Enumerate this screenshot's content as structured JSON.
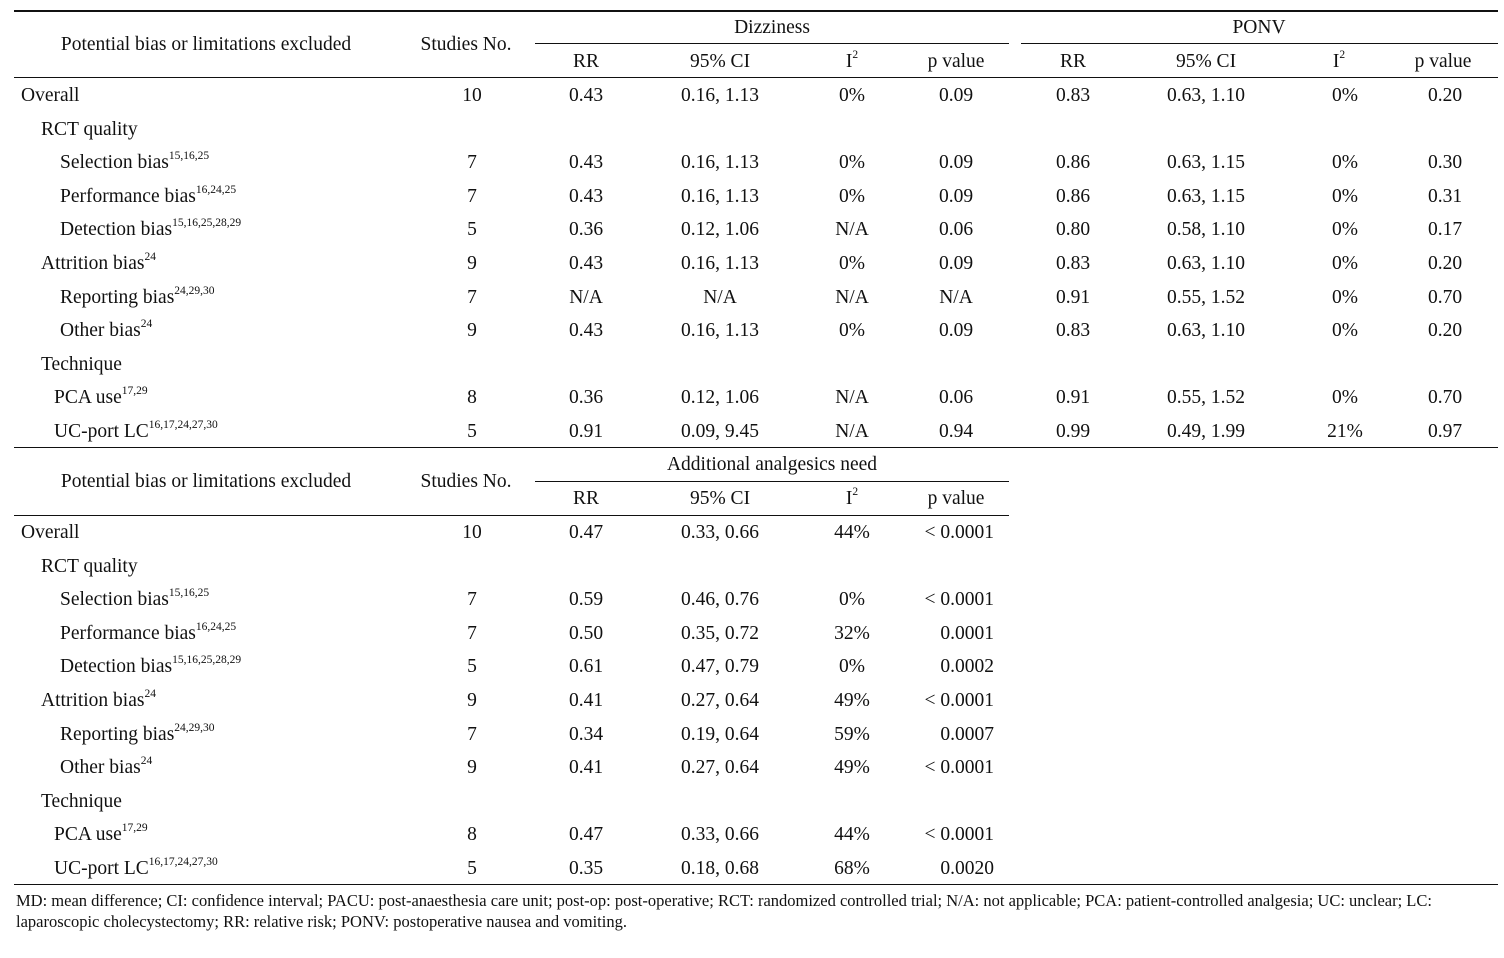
{
  "table1": {
    "header": {
      "potential_bias": "Potential bias or limitations excluded",
      "studies_no": "Studies No.",
      "group1": "Dizziness",
      "group2": "PONV",
      "sub_cols": [
        "RR",
        "95% CI",
        "I",
        "p value"
      ],
      "i_sup": "2"
    },
    "rows": [
      {
        "label": "Overall",
        "refs": "",
        "indent": 0,
        "n": "10",
        "d": [
          "0.43",
          "0.16, 1.13",
          "0%",
          "0.09"
        ],
        "p": [
          "0.83",
          "0.63, 1.10",
          "0%",
          "0.20"
        ]
      },
      {
        "label": "RCT quality",
        "refs": "",
        "indent": 1,
        "n": "",
        "d": [
          "",
          "",
          "",
          ""
        ],
        "p": [
          "",
          "",
          "",
          ""
        ]
      },
      {
        "label": "Selection bias",
        "refs": "15,16,25",
        "indent": 2,
        "n": "7",
        "d": [
          "0.43",
          "0.16, 1.13",
          "0%",
          "0.09"
        ],
        "p": [
          "0.86",
          "0.63, 1.15",
          "0%",
          "0.30"
        ]
      },
      {
        "label": "Performance bias",
        "refs": "16,24,25",
        "indent": 2,
        "n": "7",
        "d": [
          "0.43",
          "0.16, 1.13",
          "0%",
          "0.09"
        ],
        "p": [
          "0.86",
          "0.63, 1.15",
          "0%",
          "0.31"
        ]
      },
      {
        "label": "Detection bias",
        "refs": "15,16,25,28,29",
        "indent": 2,
        "n": "5",
        "d": [
          "0.36",
          "0.12, 1.06",
          "N/A",
          "0.06"
        ],
        "p": [
          "0.80",
          "0.58, 1.10",
          "0%",
          "0.17"
        ]
      },
      {
        "label": "Attrition bias",
        "refs": "24",
        "indent": 1,
        "n": "9",
        "d": [
          "0.43",
          "0.16, 1.13",
          "0%",
          "0.09"
        ],
        "p": [
          "0.83",
          "0.63, 1.10",
          "0%",
          "0.20"
        ]
      },
      {
        "label": "Reporting bias",
        "refs": "24,29,30",
        "indent": 2,
        "n": "7",
        "d": [
          "N/A",
          "N/A",
          "N/A",
          "N/A"
        ],
        "p": [
          "0.91",
          "0.55, 1.52",
          "0%",
          "0.70"
        ]
      },
      {
        "label": "Other bias",
        "refs": "24",
        "indent": 2,
        "n": "9",
        "d": [
          "0.43",
          "0.16, 1.13",
          "0%",
          "0.09"
        ],
        "p": [
          "0.83",
          "0.63, 1.10",
          "0%",
          "0.20"
        ]
      },
      {
        "label": "Technique",
        "refs": "",
        "indent": 1,
        "n": "",
        "d": [
          "",
          "",
          "",
          ""
        ],
        "p": [
          "",
          "",
          "",
          ""
        ]
      },
      {
        "label": "PCA use",
        "refs": "17,29",
        "indent": 3,
        "n": "8",
        "d": [
          "0.36",
          "0.12, 1.06",
          "N/A",
          "0.06"
        ],
        "p": [
          "0.91",
          "0.55, 1.52",
          "0%",
          "0.70"
        ]
      },
      {
        "label": "UC-port LC",
        "refs": "16,17,24,27,30",
        "indent": 3,
        "n": "5",
        "d": [
          "0.91",
          "0.09, 9.45",
          "N/A",
          "0.94"
        ],
        "p": [
          "0.99",
          "0.49, 1.99",
          "21%",
          "0.97"
        ]
      }
    ]
  },
  "table2": {
    "header": {
      "potential_bias": "Potential bias or limitations excluded",
      "studies_no": "Studies No.",
      "group1": "Additional analgesics need",
      "sub_cols": [
        "RR",
        "95% CI",
        "I",
        "p value"
      ],
      "i_sup": "2"
    },
    "rows": [
      {
        "label": "Overall",
        "refs": "",
        "indent": 0,
        "n": "10",
        "d": [
          "0.47",
          "0.33, 0.66",
          "44%",
          "< 0.0001"
        ]
      },
      {
        "label": "RCT quality",
        "refs": "",
        "indent": 1,
        "n": "",
        "d": [
          "",
          "",
          "",
          ""
        ]
      },
      {
        "label": "Selection bias",
        "refs": "15,16,25",
        "indent": 2,
        "n": "7",
        "d": [
          "0.59",
          "0.46, 0.76",
          "0%",
          "< 0.0001"
        ]
      },
      {
        "label": "Performance bias",
        "refs": "16,24,25",
        "indent": 2,
        "n": "7",
        "d": [
          "0.50",
          "0.35, 0.72",
          "32%",
          "0.0001"
        ]
      },
      {
        "label": "Detection bias",
        "refs": "15,16,25,28,29",
        "indent": 2,
        "n": "5",
        "d": [
          "0.61",
          "0.47, 0.79",
          "0%",
          "0.0002"
        ]
      },
      {
        "label": "Attrition bias",
        "refs": "24",
        "indent": 1,
        "n": "9",
        "d": [
          "0.41",
          "0.27, 0.64",
          "49%",
          "< 0.0001"
        ]
      },
      {
        "label": "Reporting bias",
        "refs": "24,29,30",
        "indent": 2,
        "n": "7",
        "d": [
          "0.34",
          "0.19, 0.64",
          "59%",
          "0.0007"
        ]
      },
      {
        "label": "Other bias",
        "refs": "24",
        "indent": 2,
        "n": "9",
        "d": [
          "0.41",
          "0.27, 0.64",
          "49%",
          "< 0.0001"
        ]
      },
      {
        "label": "Technique",
        "refs": "",
        "indent": 1,
        "n": "",
        "d": [
          "",
          "",
          "",
          ""
        ]
      },
      {
        "label": "PCA use",
        "refs": "17,29",
        "indent": 3,
        "n": "8",
        "d": [
          "0.47",
          "0.33, 0.66",
          "44%",
          "< 0.0001"
        ]
      },
      {
        "label": "UC-port LC",
        "refs": "16,17,24,27,30",
        "indent": 3,
        "n": "5",
        "d": [
          "0.35",
          "0.18, 0.68",
          "68%",
          "0.0020"
        ]
      }
    ]
  },
  "footnote": "MD: mean difference; CI: confidence interval; PACU: post-anaesthesia care unit; post-op: post-operative; RCT: randomized controlled trial; N/A: not applicable; PCA: patient-controlled analgesia; UC: unclear; LC: laparoscopic cholecystectomy; RR: relative risk; PONV: postoperative nausea and vomiting."
}
